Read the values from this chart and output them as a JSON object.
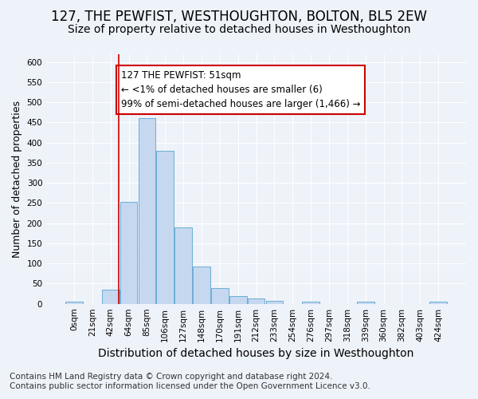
{
  "title": "127, THE PEWFIST, WESTHOUGHTON, BOLTON, BL5 2EW",
  "subtitle": "Size of property relative to detached houses in Westhoughton",
  "xlabel": "Distribution of detached houses by size in Westhoughton",
  "ylabel": "Number of detached properties",
  "footer_line1": "Contains HM Land Registry data © Crown copyright and database right 2024.",
  "footer_line2": "Contains public sector information licensed under the Open Government Licence v3.0.",
  "annotation_line1": "127 THE PEWFIST: 51sqm",
  "annotation_line2": "← <1% of detached houses are smaller (6)",
  "annotation_line3": "99% of semi-detached houses are larger (1,466) →",
  "bar_categories": [
    "0sqm",
    "21sqm",
    "42sqm",
    "64sqm",
    "85sqm",
    "106sqm",
    "127sqm",
    "148sqm",
    "170sqm",
    "191sqm",
    "212sqm",
    "233sqm",
    "254sqm",
    "276sqm",
    "297sqm",
    "318sqm",
    "339sqm",
    "360sqm",
    "382sqm",
    "403sqm",
    "424sqm"
  ],
  "bar_values": [
    5,
    0,
    35,
    253,
    460,
    380,
    190,
    92,
    38,
    20,
    13,
    7,
    0,
    5,
    0,
    0,
    6,
    0,
    0,
    0,
    5
  ],
  "bar_color": "#c5d8f0",
  "bar_edge_color": "#6baed6",
  "vline_x_idx": 2.43,
  "vline_color": "#cc0000",
  "annotation_box_color": "#cc0000",
  "ylim": [
    0,
    620
  ],
  "yticks": [
    0,
    50,
    100,
    150,
    200,
    250,
    300,
    350,
    400,
    450,
    500,
    550,
    600
  ],
  "background_color": "#eef2f9",
  "plot_background": "#eef2f9",
  "grid_color": "#ffffff",
  "title_fontsize": 12,
  "subtitle_fontsize": 10,
  "axis_label_fontsize": 9,
  "tick_fontsize": 7.5,
  "annotation_fontsize": 8.5,
  "footer_fontsize": 7.5
}
